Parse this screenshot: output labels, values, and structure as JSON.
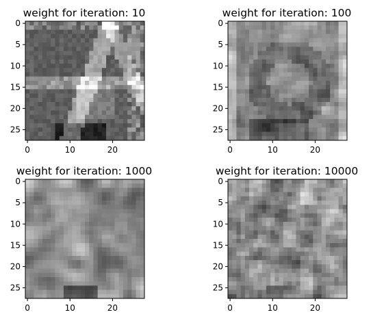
{
  "figure": {
    "background": "#ffffff",
    "colormap": "gray"
  },
  "chart_data": [
    {
      "type": "heatmap",
      "title": "weight for iteration: 10",
      "shape": [
        28,
        28
      ],
      "xlim": [
        -0.5,
        27.5
      ],
      "ylim": [
        27.5,
        -0.5
      ],
      "xticks": [
        0,
        10,
        20
      ],
      "yticks": [
        0,
        5,
        10,
        15,
        20,
        25
      ],
      "xlabel": "",
      "ylabel": "",
      "grid": false,
      "colormap": "gray",
      "pattern": "smooth strokes overlaid on dark background"
    },
    {
      "type": "heatmap",
      "title": "weight for iteration: 100",
      "shape": [
        28,
        28
      ],
      "xlim": [
        -0.5,
        27.5
      ],
      "ylim": [
        27.5,
        -0.5
      ],
      "xticks": [
        0,
        10,
        20
      ],
      "yticks": [
        0,
        5,
        10,
        15,
        20,
        25
      ],
      "xlabel": "",
      "ylabel": "",
      "grid": false,
      "colormap": "gray",
      "pattern": "blurred ring-like blob with noise"
    },
    {
      "type": "heatmap",
      "title": "weight for iteration: 1000",
      "shape": [
        28,
        28
      ],
      "xlim": [
        -0.5,
        27.5
      ],
      "ylim": [
        27.5,
        -0.5
      ],
      "xticks": [
        0,
        10,
        20
      ],
      "yticks": [
        0,
        5,
        10,
        15,
        20,
        25
      ],
      "xlabel": "",
      "ylabel": "",
      "grid": false,
      "colormap": "gray",
      "pattern": "smooth mid-gray noise"
    },
    {
      "type": "heatmap",
      "title": "weight for iteration: 10000",
      "shape": [
        28,
        28
      ],
      "xlim": [
        -0.5,
        27.5
      ],
      "ylim": [
        27.5,
        -0.5
      ],
      "xticks": [
        0,
        10,
        20
      ],
      "yticks": [
        0,
        5,
        10,
        15,
        20,
        25
      ],
      "xlabel": "",
      "ylabel": "",
      "grid": false,
      "colormap": "gray",
      "pattern": "fine-grained noise"
    }
  ]
}
